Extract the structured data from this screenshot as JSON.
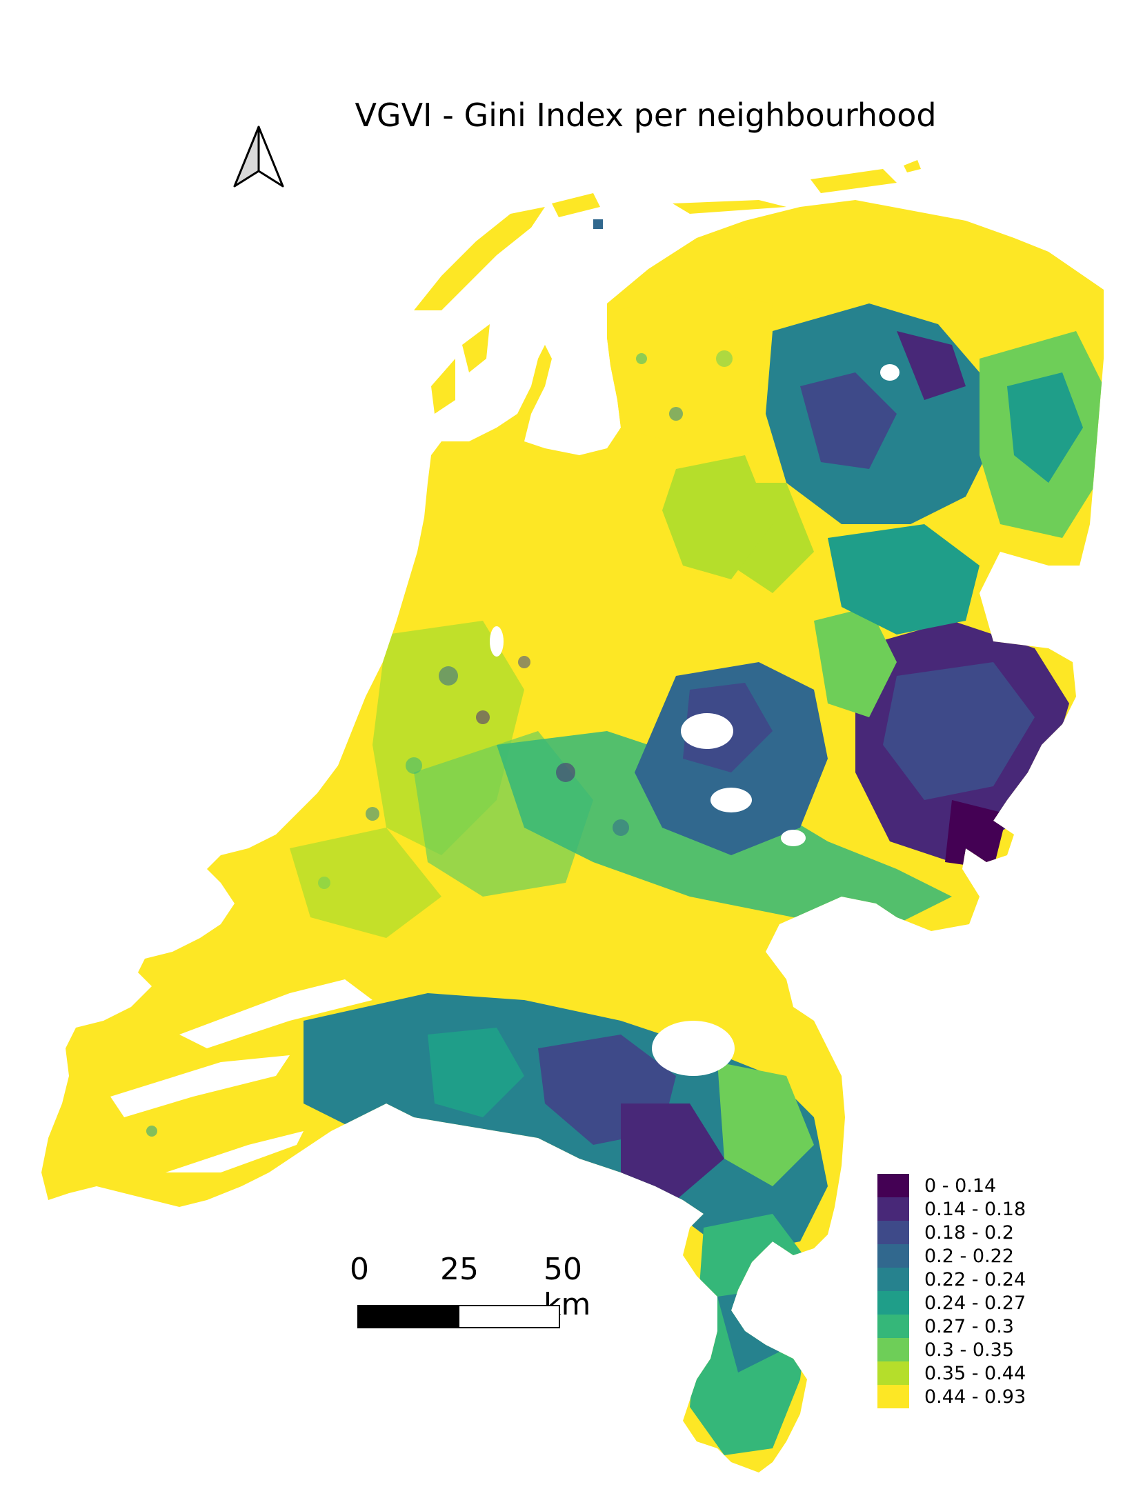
{
  "title": "VGVI - Gini Index per neighbourhood",
  "north_arrow": {
    "icon": "north-arrow-icon"
  },
  "scale_bar": {
    "labels": [
      "0",
      "25",
      "50 km"
    ],
    "segment_colors": [
      "#000000",
      "#ffffff"
    ]
  },
  "legend": {
    "items": [
      {
        "label": "0 - 0.14",
        "color": "#440154"
      },
      {
        "label": "0.14 - 0.18",
        "color": "#482878"
      },
      {
        "label": "0.18 - 0.2",
        "color": "#3e4a89"
      },
      {
        "label": "0.2 - 0.22",
        "color": "#31688e"
      },
      {
        "label": "0.22 - 0.24",
        "color": "#26828e"
      },
      {
        "label": "0.24 - 0.27",
        "color": "#1f9e89"
      },
      {
        "label": "0.27 - 0.3",
        "color": "#35b779"
      },
      {
        "label": "0.3 - 0.35",
        "color": "#6ece58"
      },
      {
        "label": "0.35 - 0.44",
        "color": "#b5de2b"
      },
      {
        "label": "0.44 - 0.93",
        "color": "#fde725"
      }
    ]
  }
}
